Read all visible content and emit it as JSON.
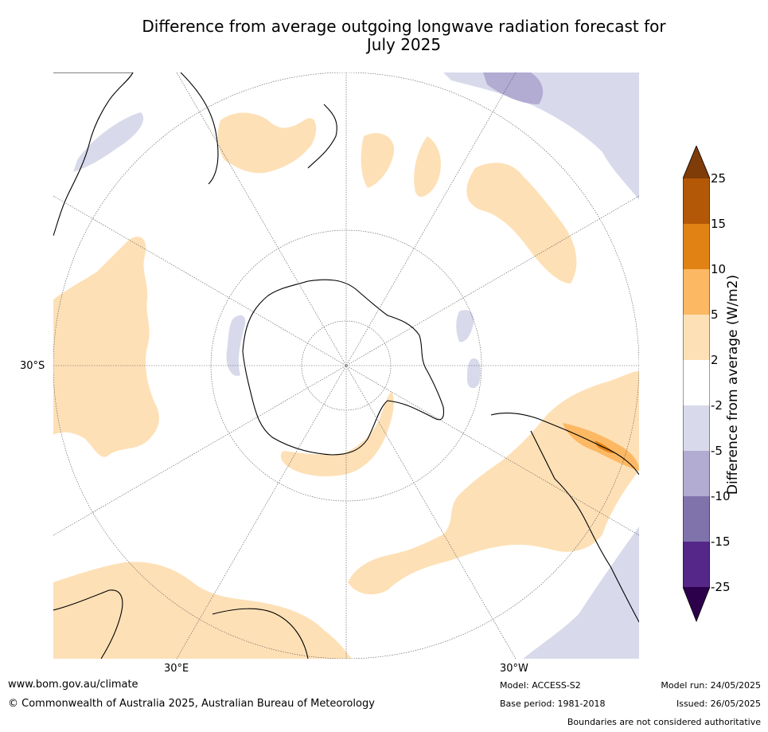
{
  "title_line1": "Difference from average outgoing longwave radiation forecast for",
  "title_line2": "July 2025",
  "map_labels": {
    "lat_30s": "30°S",
    "lon_30e": "30°E",
    "lon_30w": "30°W"
  },
  "colorbar": {
    "title": "Difference from average (W/m2)",
    "ticks": [
      "25",
      "15",
      "10",
      "5",
      "2",
      "-2",
      "-5",
      "-10",
      "-15",
      "-25"
    ],
    "colors": [
      "#7f3b08",
      "#b35806",
      "#e08214",
      "#fdb863",
      "#fee0b6",
      "#ffffff",
      "#d8daeb",
      "#b2abd2",
      "#8073ac",
      "#542788",
      "#2d004b"
    ]
  },
  "footer": {
    "website": "www.bom.gov.au/climate",
    "copyright": "© Commonwealth of Australia 2025, Australian Bureau of Meteorology",
    "model": "Model: ACCESS-S2",
    "base_period": "Base period: 1981-2018",
    "model_run": "Model run: 24/05/2025",
    "issued": "Issued: 26/05/2025",
    "disclaimer": "Boundaries are not considered authoritative"
  }
}
